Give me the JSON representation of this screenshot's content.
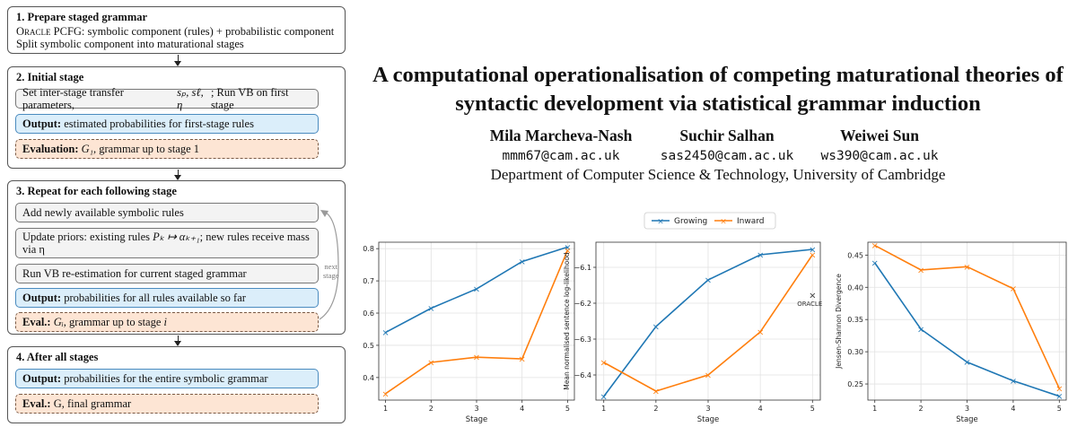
{
  "flowchart": {
    "s1": {
      "title": "1.  Prepare staged grammar",
      "line1_sc": "Oracle",
      "line1_rest": " PCFG: symbolic component (rules) + probabilistic component",
      "line2": "Split symbolic component into maturational stages"
    },
    "s2": {
      "title": "2.  Initial stage",
      "b1": "Set inter-stage transfer parameters, ",
      "b1_math": "sₚ, sℓ, η",
      "b1_tail": "; Run VB on first stage",
      "b2_bold": "Output:",
      "b2": " estimated probabilities for first-stage rules",
      "b3_bold": "Evaluation:",
      "b3_math": " G₁",
      "b3": ", grammar up to stage 1"
    },
    "s3": {
      "title": "3.  Repeat for each following stage",
      "b1": "Add newly available symbolic rules",
      "b2": "Update priors: existing rules ",
      "b2_math": "Pₖ ↦ αₖ₊₁",
      "b2_tail": "; new rules receive mass",
      "b2_line2": "via η",
      "b3": "Run VB re-estimation for current staged grammar",
      "b4_bold": "Output:",
      "b4": " probabilities for all rules available so far",
      "b5_bold": "Eval.:",
      "b5_math": " Gᵢ",
      "b5": ", grammar up to stage ",
      "b5_i": "i",
      "loop_label1": "next",
      "loop_label2": "stage"
    },
    "s4": {
      "title": "4.  After all stages",
      "b1_bold": "Output:",
      "b1": " probabilities for the entire symbolic grammar",
      "b2_bold": "Eval.:",
      "b2": " G, final grammar"
    }
  },
  "paper": {
    "title_line1": "A computational operationalisation of competing maturational theories of",
    "title_line2": "syntactic development via statistical grammar induction",
    "authors": [
      {
        "name": "Mila Marcheva-Nash",
        "email": "mmm67@cam.ac.uk"
      },
      {
        "name": "Suchir Salhan",
        "email": "sas2450@cam.ac.uk"
      },
      {
        "name": "Weiwei Sun",
        "email": "ws390@cam.ac.uk"
      }
    ],
    "affiliation": "Department of Computer Science & Technology, University of Cambridge"
  },
  "legend": [
    "Growing",
    "Inward"
  ],
  "colors": {
    "growing": "#1f77b4",
    "inward": "#ff7f0e"
  },
  "chart_data": [
    {
      "type": "line",
      "x": [
        1,
        2,
        3,
        4,
        5
      ],
      "xlabel": "Stage",
      "ylabel": "",
      "ylim": [
        0.33,
        0.82
      ],
      "yticks": [
        0.4,
        0.5,
        0.6,
        0.7,
        0.8
      ],
      "ytick_labels": [
        "0.4",
        "0.5",
        "0.6",
        "0.7",
        "0.8"
      ],
      "grid": true,
      "series": [
        {
          "name": "Growing",
          "values": [
            0.54,
            0.615,
            0.675,
            0.76,
            0.805
          ]
        },
        {
          "name": "Inward",
          "values": [
            0.35,
            0.447,
            0.463,
            0.458,
            0.795
          ]
        }
      ]
    },
    {
      "type": "line",
      "x": [
        1,
        2,
        3,
        4,
        5
      ],
      "xlabel": "Stage",
      "ylabel": "Mean normalised sentence log-likelihood",
      "ylim": [
        -6.47,
        -6.03
      ],
      "yticks": [
        -6.4,
        -6.3,
        -6.2,
        -6.1
      ],
      "ytick_labels": [
        "−6.4",
        "−6.3",
        "−6.2",
        "−6.1"
      ],
      "grid": true,
      "series": [
        {
          "name": "Growing",
          "values": [
            -6.46,
            -6.265,
            -6.135,
            -6.065,
            -6.05
          ]
        },
        {
          "name": "Inward",
          "values": [
            -6.365,
            -6.445,
            -6.4,
            -6.28,
            -6.065
          ]
        }
      ],
      "annotation": {
        "label": "ORACLE",
        "x": 5,
        "y": -6.178
      }
    },
    {
      "type": "line",
      "x": [
        1,
        2,
        3,
        4,
        5
      ],
      "xlabel": "Stage",
      "ylabel": "Jensen-Shannon Divergence",
      "ylim": [
        0.225,
        0.47
      ],
      "yticks": [
        0.25,
        0.3,
        0.35,
        0.4,
        0.45
      ],
      "ytick_labels": [
        "0.25",
        "0.30",
        "0.35",
        "0.40",
        "0.45"
      ],
      "grid": true,
      "series": [
        {
          "name": "Growing",
          "values": [
            0.438,
            0.335,
            0.284,
            0.255,
            0.231
          ]
        },
        {
          "name": "Inward",
          "values": [
            0.465,
            0.427,
            0.432,
            0.398,
            0.243
          ]
        }
      ]
    }
  ]
}
